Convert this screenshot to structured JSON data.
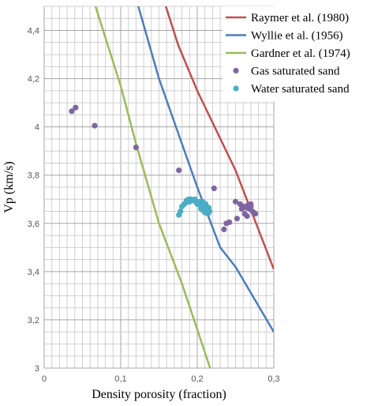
{
  "chart_data": {
    "type": "scatter",
    "title": "",
    "xlabel": "Density porosity (fraction)",
    "ylabel": "Vp (km/s)",
    "xlim": [
      0,
      0.3
    ],
    "ylim": [
      3,
      4.5
    ],
    "xticks": [
      "0",
      "0,1",
      "0,2",
      "0,3"
    ],
    "yticks": [
      "3",
      "3,2",
      "3,4",
      "3,6",
      "3,8",
      "4",
      "4,2",
      "4,4"
    ],
    "grid": true,
    "legend_position": "top-right",
    "lines": [
      {
        "name": "Raymer et al. (1980)",
        "color": "#c0504d",
        "points": [
          [
            0.159,
            4.5
          ],
          [
            0.175,
            4.34
          ],
          [
            0.2,
            4.15
          ],
          [
            0.25,
            3.82
          ],
          [
            0.3,
            3.41
          ]
        ]
      },
      {
        "name": "Wyllie et al. (1956)",
        "color": "#4a7ebb",
        "points": [
          [
            0.123,
            4.5
          ],
          [
            0.15,
            4.2
          ],
          [
            0.2,
            3.75
          ],
          [
            0.23,
            3.5
          ],
          [
            0.25,
            3.42
          ],
          [
            0.3,
            3.15
          ]
        ]
      },
      {
        "name": "Gardner et al. (1974)",
        "color": "#9bbb59",
        "points": [
          [
            0.067,
            4.5
          ],
          [
            0.1,
            4.17
          ],
          [
            0.12,
            3.93
          ],
          [
            0.15,
            3.6
          ],
          [
            0.18,
            3.35
          ],
          [
            0.22,
            2.97
          ]
        ]
      }
    ],
    "series": [
      {
        "name": "Gas saturated sand",
        "color": "#8064a2",
        "points": [
          [
            0.036,
            4.065
          ],
          [
            0.041,
            4.08
          ],
          [
            0.066,
            4.005
          ],
          [
            0.12,
            3.915
          ],
          [
            0.176,
            3.82
          ],
          [
            0.222,
            3.745
          ],
          [
            0.235,
            3.575
          ],
          [
            0.238,
            3.6
          ],
          [
            0.242,
            3.605
          ],
          [
            0.25,
            3.69
          ],
          [
            0.252,
            3.62
          ],
          [
            0.256,
            3.68
          ],
          [
            0.26,
            3.67
          ],
          [
            0.262,
            3.64
          ],
          [
            0.264,
            3.665
          ],
          [
            0.266,
            3.675
          ],
          [
            0.268,
            3.66
          ],
          [
            0.27,
            3.67
          ],
          [
            0.272,
            3.65
          ],
          [
            0.274,
            3.645
          ],
          [
            0.276,
            3.64
          ],
          [
            0.258,
            3.66
          ],
          [
            0.265,
            3.63
          ],
          [
            0.27,
            3.68
          ]
        ]
      },
      {
        "name": "Water saturated sand",
        "color": "#4bacc6",
        "points": [
          [
            0.176,
            3.635
          ],
          [
            0.178,
            3.65
          ],
          [
            0.18,
            3.67
          ],
          [
            0.183,
            3.68
          ],
          [
            0.186,
            3.695
          ],
          [
            0.189,
            3.7
          ],
          [
            0.192,
            3.7
          ],
          [
            0.195,
            3.695
          ],
          [
            0.198,
            3.69
          ],
          [
            0.2,
            3.68
          ],
          [
            0.202,
            3.685
          ],
          [
            0.204,
            3.675
          ],
          [
            0.205,
            3.66
          ],
          [
            0.206,
            3.67
          ],
          [
            0.207,
            3.655
          ],
          [
            0.208,
            3.68
          ],
          [
            0.209,
            3.665
          ],
          [
            0.21,
            3.645
          ],
          [
            0.211,
            3.67
          ],
          [
            0.212,
            3.655
          ],
          [
            0.213,
            3.66
          ],
          [
            0.214,
            3.64
          ],
          [
            0.216,
            3.65
          ],
          [
            0.185,
            3.685
          ],
          [
            0.19,
            3.69
          ],
          [
            0.197,
            3.7
          ],
          [
            0.203,
            3.69
          ],
          [
            0.207,
            3.69
          ],
          [
            0.211,
            3.68
          ],
          [
            0.215,
            3.665
          ]
        ]
      }
    ]
  }
}
